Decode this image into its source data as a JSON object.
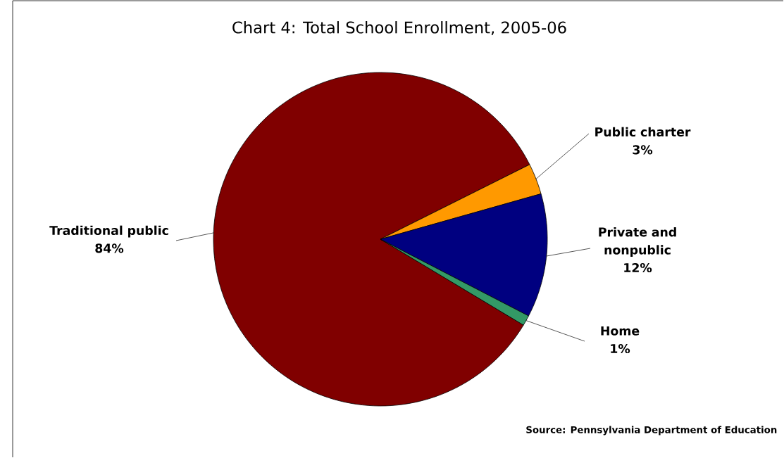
{
  "chart_data": {
    "type": "pie",
    "title": "Chart 4: Total School Enrollment, 2005-06",
    "categories": [
      "Traditional public",
      "Public charter",
      "Private and nonpublic",
      "Home"
    ],
    "values": [
      84,
      3,
      12,
      1
    ],
    "value_labels": [
      "84%",
      "3%",
      "12%",
      "1%"
    ],
    "colors": [
      "#800000",
      "#ff9900",
      "#000080",
      "#339966"
    ],
    "annotations": [
      "Source: Pennsylvania Department of Education"
    ]
  }
}
